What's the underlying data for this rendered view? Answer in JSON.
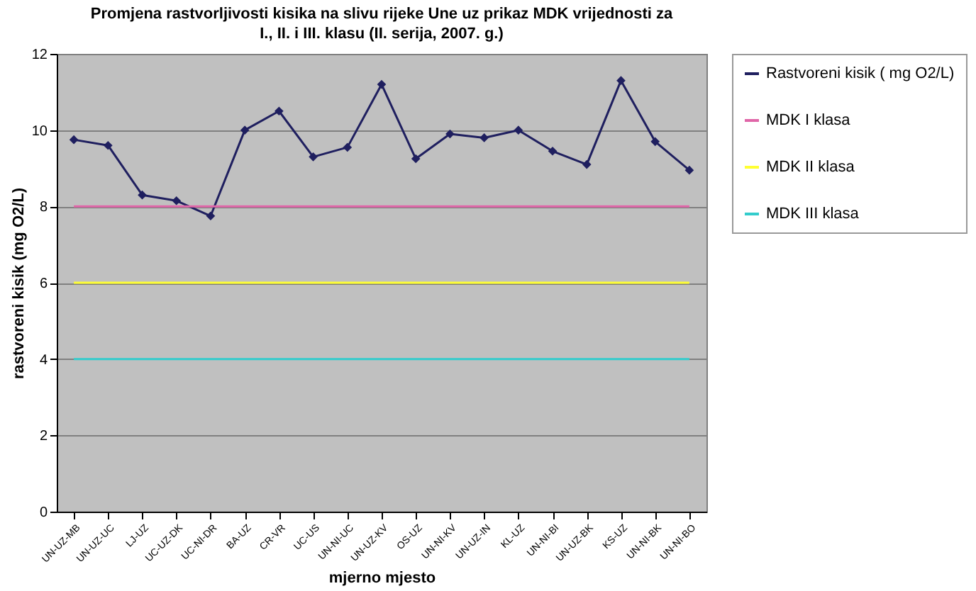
{
  "chart_data": {
    "type": "line",
    "title": "Promjena rastvorljivosti kisika na slivu rijeke Une uz prikaz MDK vrijednosti za I., II. i III. klasu (II. serija, 2007. g.)",
    "xlabel": "mjerno mjesto",
    "ylabel": "rastvoreni kisik (mg O2/L)",
    "categories": [
      "UN-UZ-MB",
      "UN-UZ-UC",
      "LJ-UZ",
      "UC-UZ-DK",
      "UC-NI-DR",
      "BA-UZ",
      "CR-VR",
      "UC-US",
      "UN-NI-UC",
      "UN-UZ-KV",
      "OS-UZ",
      "UN-NI-KV",
      "UN-UZ-IN",
      "KL-UZ",
      "UN-NI-BI",
      "UN-UZ-BK",
      "KS-UZ",
      "UN-NI-BK",
      "UN-NI-BO"
    ],
    "series": [
      {
        "name": "Rastvoreni kisik ( mg O2/L)",
        "color": "#1f1f5f",
        "marker": "diamond",
        "values": [
          9.75,
          9.6,
          8.3,
          8.15,
          7.75,
          10.0,
          10.5,
          9.3,
          9.55,
          11.2,
          9.25,
          9.9,
          9.8,
          10.0,
          9.45,
          9.1,
          11.3,
          9.7,
          8.95
        ]
      },
      {
        "name": "MDK I klasa",
        "color": "#e066a8",
        "marker": "none",
        "values": [
          8,
          8,
          8,
          8,
          8,
          8,
          8,
          8,
          8,
          8,
          8,
          8,
          8,
          8,
          8,
          8,
          8,
          8,
          8
        ]
      },
      {
        "name": "MDK II klasa",
        "color": "#ffff33",
        "marker": "none",
        "values": [
          6,
          6,
          6,
          6,
          6,
          6,
          6,
          6,
          6,
          6,
          6,
          6,
          6,
          6,
          6,
          6,
          6,
          6,
          6
        ]
      },
      {
        "name": "MDK III klasa",
        "color": "#33cccc",
        "marker": "none",
        "values": [
          4,
          4,
          4,
          4,
          4,
          4,
          4,
          4,
          4,
          4,
          4,
          4,
          4,
          4,
          4,
          4,
          4,
          4,
          4
        ]
      }
    ],
    "ylim": [
      0,
      12
    ],
    "yticks": [
      0,
      2,
      4,
      6,
      8,
      10,
      12
    ],
    "grid": "y",
    "legend": "right"
  }
}
